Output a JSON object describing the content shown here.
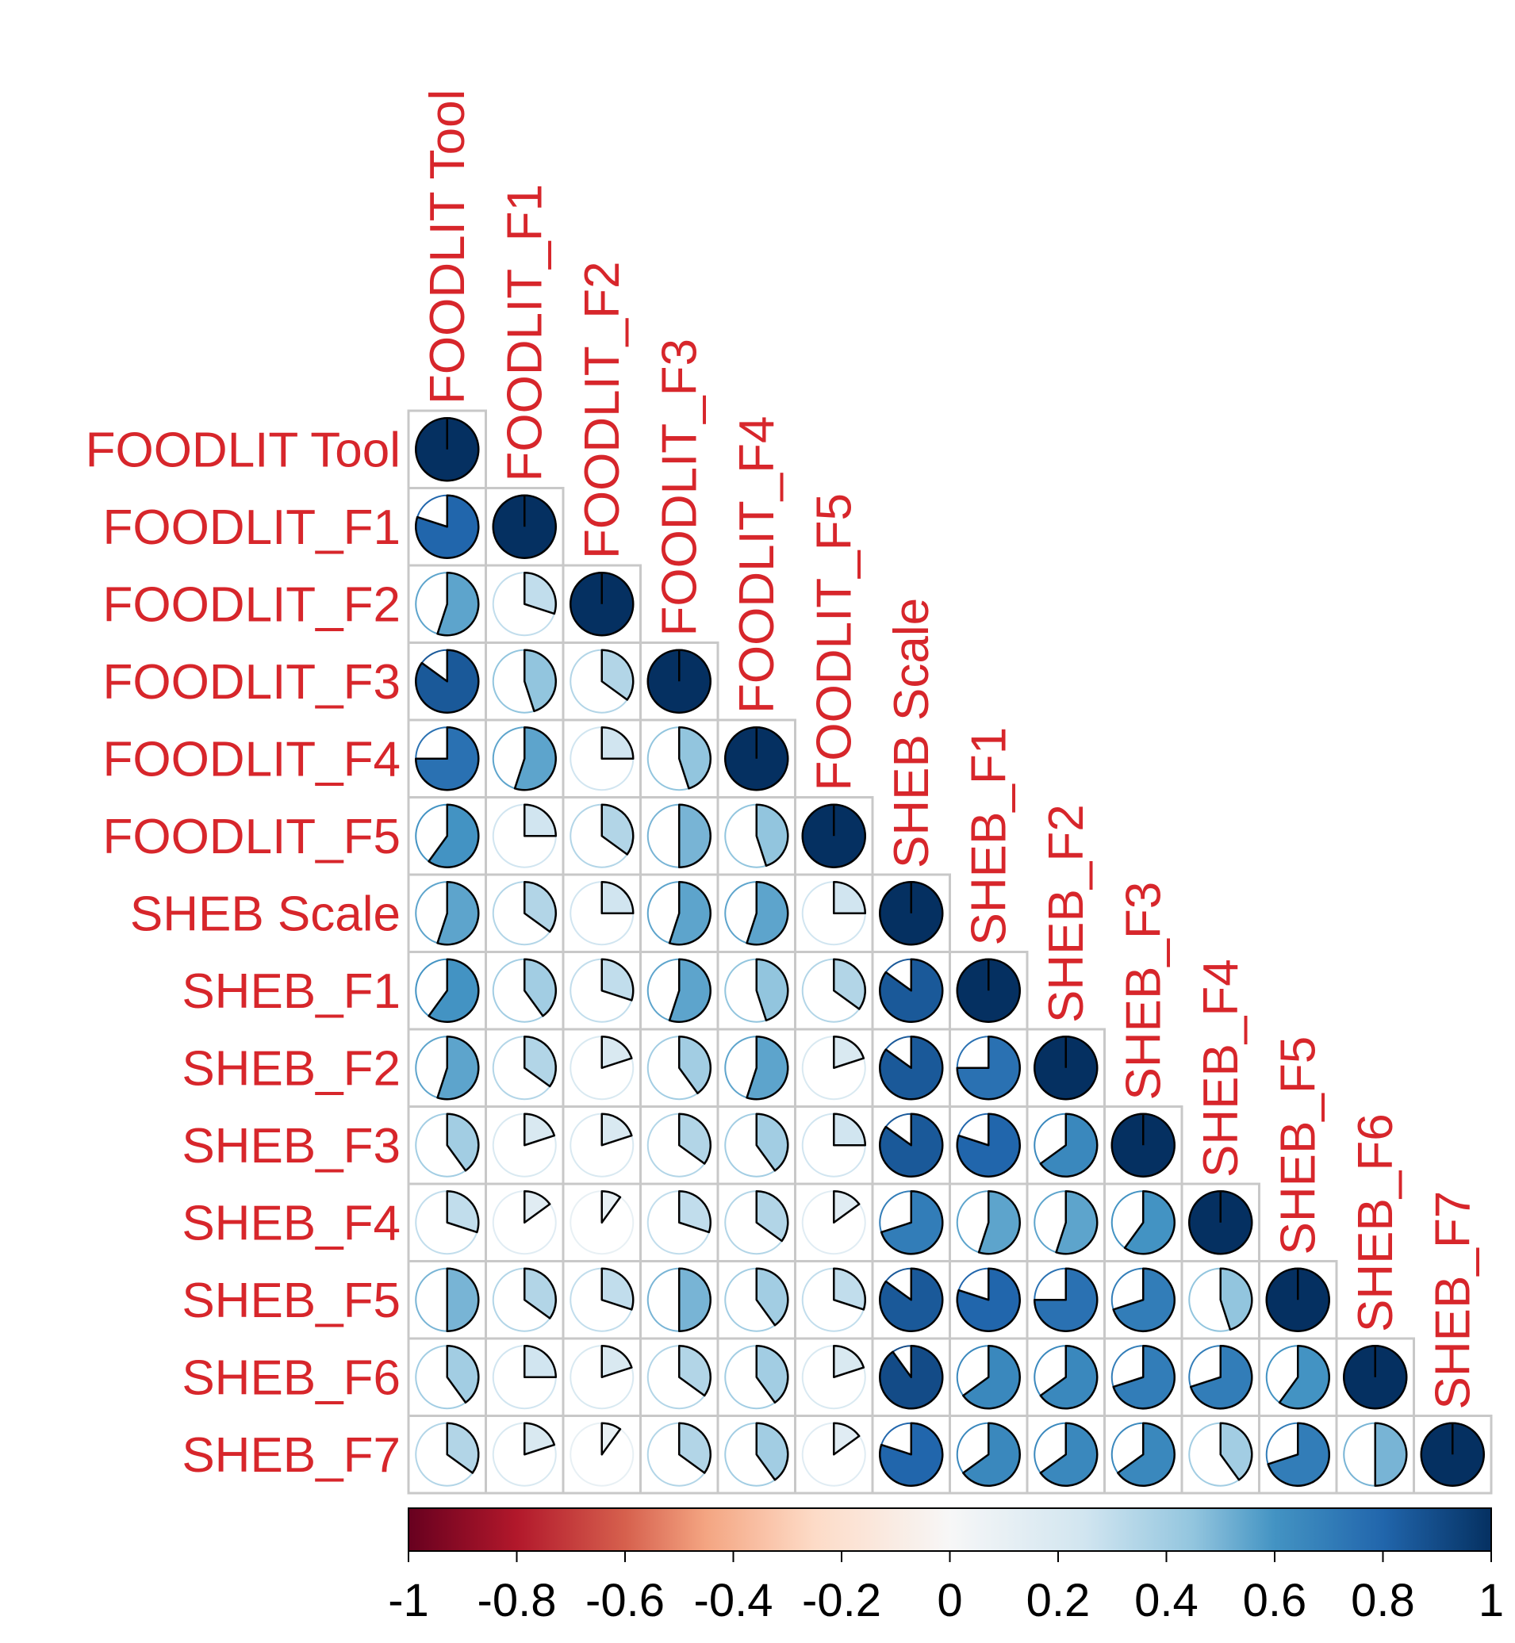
{
  "chart_data": {
    "type": "heatmap",
    "style": "corrplot-pie-lower",
    "variables": [
      "FOODLIT Tool",
      "FOODLIT_F1",
      "FOODLIT_F2",
      "FOODLIT_F3",
      "FOODLIT_F4",
      "FOODLIT_F5",
      "SHEB Scale",
      "SHEB_F1",
      "SHEB_F2",
      "SHEB_F3",
      "SHEB_F4",
      "SHEB_F5",
      "SHEB_F6",
      "SHEB_F7"
    ],
    "matrix_lower": [
      [
        1.0
      ],
      [
        0.8,
        1.0
      ],
      [
        0.55,
        0.3,
        1.0
      ],
      [
        0.85,
        0.45,
        0.35,
        1.0
      ],
      [
        0.75,
        0.55,
        0.25,
        0.45,
        1.0
      ],
      [
        0.6,
        0.25,
        0.35,
        0.5,
        0.45,
        1.0
      ],
      [
        0.55,
        0.35,
        0.25,
        0.55,
        0.55,
        0.25,
        1.0
      ],
      [
        0.6,
        0.4,
        0.3,
        0.55,
        0.45,
        0.35,
        0.85,
        1.0
      ],
      [
        0.55,
        0.35,
        0.2,
        0.4,
        0.55,
        0.2,
        0.85,
        0.75,
        1.0
      ],
      [
        0.4,
        0.2,
        0.2,
        0.35,
        0.4,
        0.25,
        0.85,
        0.8,
        0.65,
        1.0
      ],
      [
        0.3,
        0.15,
        0.1,
        0.3,
        0.35,
        0.15,
        0.7,
        0.55,
        0.55,
        0.6,
        1.0
      ],
      [
        0.5,
        0.35,
        0.3,
        0.5,
        0.4,
        0.3,
        0.85,
        0.8,
        0.75,
        0.7,
        0.45,
        1.0
      ],
      [
        0.4,
        0.25,
        0.2,
        0.35,
        0.4,
        0.2,
        0.9,
        0.65,
        0.65,
        0.7,
        0.7,
        0.6,
        1.0
      ],
      [
        0.35,
        0.2,
        0.1,
        0.35,
        0.4,
        0.15,
        0.8,
        0.65,
        0.65,
        0.65,
        0.4,
        0.7,
        0.5,
        1.0
      ]
    ],
    "color_scale": {
      "low": "#67001f",
      "mid": "#f7f7f7",
      "high": "#053061",
      "range": [
        -1,
        1
      ],
      "tick_labels": [
        "-1",
        "-0.8",
        "-0.6",
        "-0.4",
        "-0.2",
        "0",
        "0.2",
        "0.4",
        "0.6",
        "0.8",
        "1"
      ],
      "position": "bottom"
    },
    "label_color": "#d7262b"
  }
}
